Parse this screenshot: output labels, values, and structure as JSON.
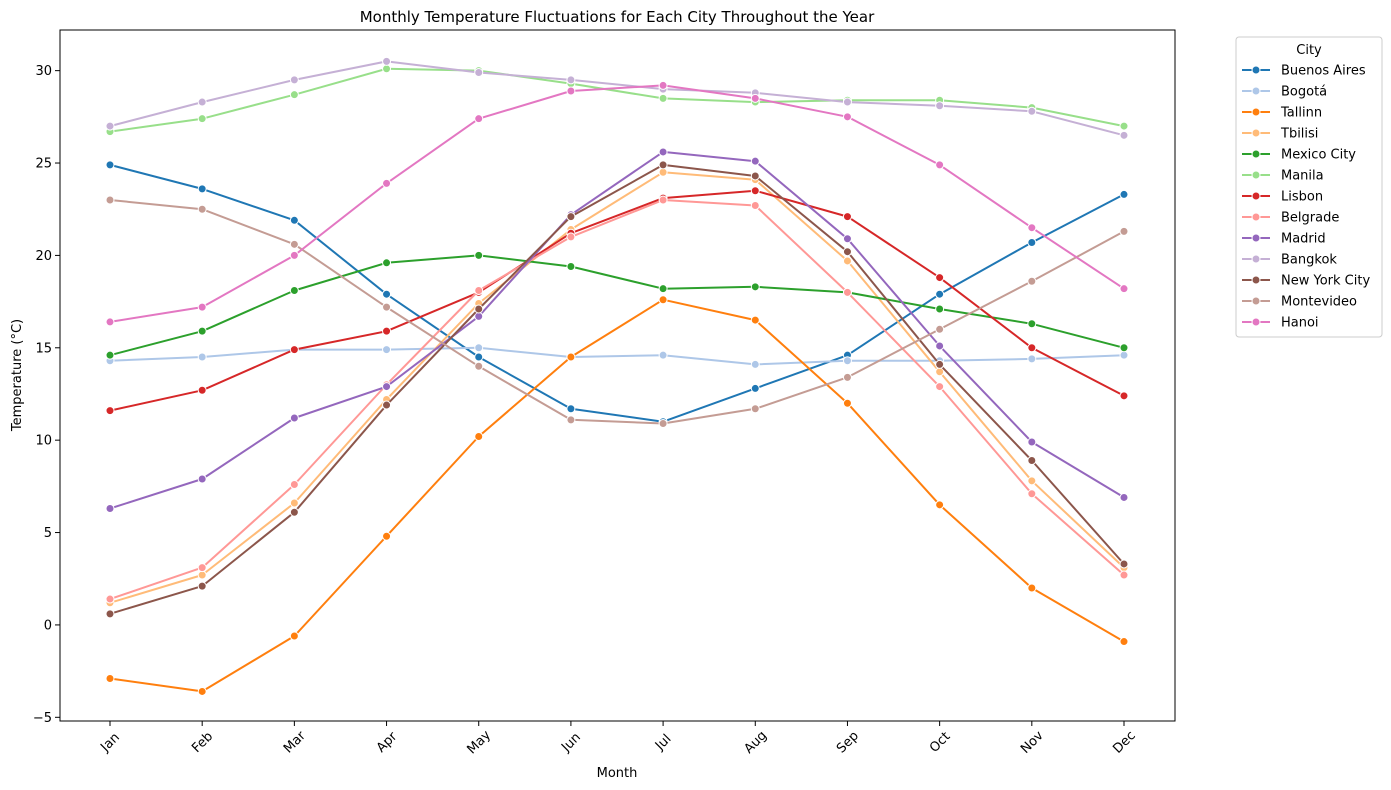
{
  "chart_data": {
    "type": "line",
    "title": "Monthly Temperature Fluctuations for Each City Throughout the Year",
    "xlabel": "Month",
    "ylabel": "Temperature (°C)",
    "categories": [
      "Jan",
      "Feb",
      "Mar",
      "Apr",
      "May",
      "Jun",
      "Jul",
      "Aug",
      "Sep",
      "Oct",
      "Nov",
      "Dec"
    ],
    "ylim": [
      -5.2,
      32.2
    ],
    "yticks": [
      -5,
      0,
      5,
      10,
      15,
      20,
      25,
      30
    ],
    "grid": false,
    "legend": {
      "title": "City",
      "position": "outside-top-right"
    },
    "series": [
      {
        "name": "Buenos Aires",
        "color": "#1f77b4",
        "values": [
          24.9,
          23.6,
          21.9,
          17.9,
          14.5,
          11.7,
          11.0,
          12.8,
          14.6,
          17.9,
          20.7,
          23.3
        ]
      },
      {
        "name": "Bogotá",
        "color": "#aec7e8",
        "values": [
          14.3,
          14.5,
          14.9,
          14.9,
          15.0,
          14.5,
          14.6,
          14.1,
          14.3,
          14.3,
          14.4,
          14.6
        ]
      },
      {
        "name": "Tallinn",
        "color": "#ff7f0e",
        "values": [
          -2.9,
          -3.6,
          -0.6,
          4.8,
          10.2,
          14.5,
          17.6,
          16.5,
          12.0,
          6.5,
          2.0,
          -0.9
        ]
      },
      {
        "name": "Tbilisi",
        "color": "#ffbb78",
        "values": [
          1.2,
          2.7,
          6.6,
          12.2,
          17.4,
          21.4,
          24.5,
          24.1,
          19.7,
          13.7,
          7.8,
          3.1
        ]
      },
      {
        "name": "Mexico City",
        "color": "#2ca02c",
        "values": [
          14.6,
          15.9,
          18.1,
          19.6,
          20.0,
          19.4,
          18.2,
          18.3,
          18.0,
          17.1,
          16.3,
          15.0
        ]
      },
      {
        "name": "Manila",
        "color": "#98df8a",
        "values": [
          26.7,
          27.4,
          28.7,
          30.1,
          30.0,
          29.3,
          28.5,
          28.3,
          28.4,
          28.4,
          28.0,
          27.0
        ]
      },
      {
        "name": "Lisbon",
        "color": "#d62728",
        "values": [
          11.6,
          12.7,
          14.9,
          15.9,
          18.0,
          21.2,
          23.1,
          23.5,
          22.1,
          18.8,
          15.0,
          12.4
        ]
      },
      {
        "name": "Belgrade",
        "color": "#ff9896",
        "values": [
          1.4,
          3.1,
          7.6,
          13.0,
          18.1,
          21.0,
          23.0,
          22.7,
          18.0,
          12.9,
          7.1,
          2.7
        ]
      },
      {
        "name": "Madrid",
        "color": "#9467bd",
        "values": [
          6.3,
          7.9,
          11.2,
          12.9,
          16.7,
          22.2,
          25.6,
          25.1,
          20.9,
          15.1,
          9.9,
          6.9
        ]
      },
      {
        "name": "Bangkok",
        "color": "#c5b0d5",
        "values": [
          27.0,
          28.3,
          29.5,
          30.5,
          29.9,
          29.5,
          29.0,
          28.8,
          28.3,
          28.1,
          27.8,
          26.5
        ]
      },
      {
        "name": "New York City",
        "color": "#8c564b",
        "values": [
          0.6,
          2.1,
          6.1,
          11.9,
          17.1,
          22.1,
          24.9,
          24.3,
          20.2,
          14.1,
          8.9,
          3.3
        ]
      },
      {
        "name": "Montevideo",
        "color": "#c49c94",
        "values": [
          23.0,
          22.5,
          20.6,
          17.2,
          14.0,
          11.1,
          10.9,
          11.7,
          13.4,
          16.0,
          18.6,
          21.3
        ]
      },
      {
        "name": "Hanoi",
        "color": "#e377c2",
        "values": [
          16.4,
          17.2,
          20.0,
          23.9,
          27.4,
          28.9,
          29.2,
          28.5,
          27.5,
          24.9,
          21.5,
          18.2
        ]
      }
    ]
  }
}
